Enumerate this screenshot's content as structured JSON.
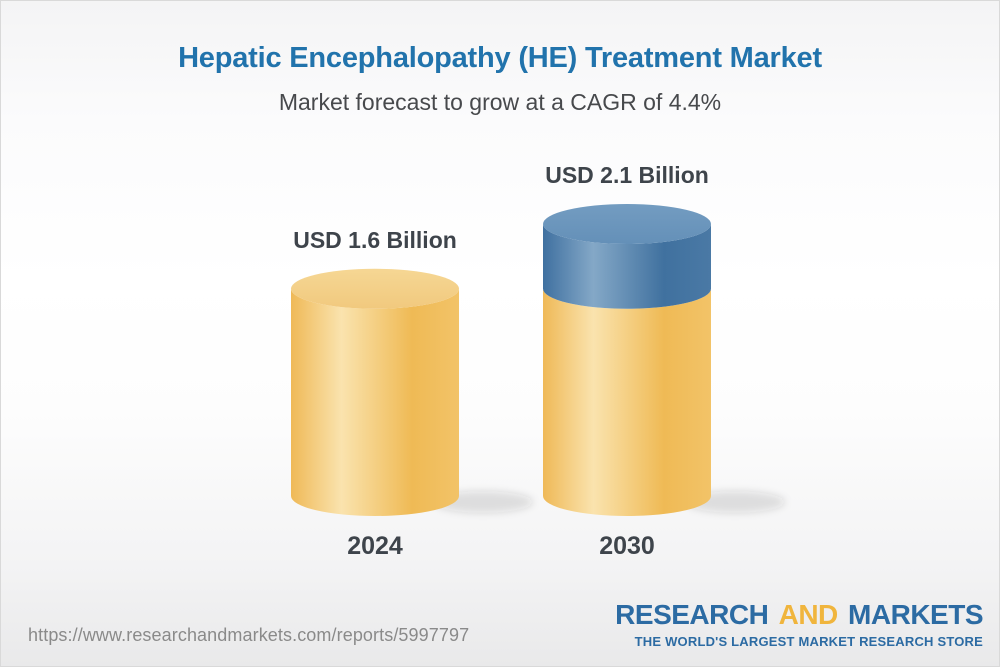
{
  "header": {
    "title": "Hepatic Encephalopathy (HE) Treatment Market",
    "subtitle": "Market forecast to grow at a CAGR of 4.4%",
    "title_color": "#2173ac",
    "subtitle_color": "#47494c"
  },
  "chart_data": {
    "type": "bar",
    "subtype": "3d-cylinder",
    "title": "Hepatic Encephalopathy (HE) Treatment Market",
    "subtitle": "Market forecast to grow at a CAGR of 4.4%",
    "cagr_percent": 4.4,
    "unit": "USD Billion",
    "categories": [
      "2024",
      "2030"
    ],
    "values": [
      1.6,
      2.1
    ],
    "value_labels": [
      "USD 1.6 Billion",
      "USD 2.1 Billion"
    ],
    "axis": {
      "y_axis_shown": false,
      "gridlines": false,
      "x_labels_shown": true
    },
    "legend": {
      "shown": false
    },
    "colors": {
      "base_segment": "#f3c46c",
      "growth_segment": "#5e8cb5",
      "label_text": "#3e444b",
      "gradients": {
        "yellow_side": [
          [
            "0%",
            "#efb957"
          ],
          [
            "30%",
            "#fae3ae"
          ],
          [
            "72%",
            "#efba55"
          ],
          [
            "100%",
            "#f2c368"
          ]
        ],
        "yellow_top": [
          [
            "0%",
            "#f6d794"
          ],
          [
            "100%",
            "#f1c97e"
          ]
        ],
        "blue_side": [
          [
            "0%",
            "#3f70a0"
          ],
          [
            "30%",
            "#84a8c7"
          ],
          [
            "72%",
            "#40719f"
          ],
          [
            "100%",
            "#4a79a5"
          ]
        ],
        "blue_top": [
          [
            "0%",
            "#739cc1"
          ],
          [
            "100%",
            "#6490b8"
          ]
        ]
      },
      "shadow": "rgba(40,40,40,0.13)"
    }
  },
  "footer": {
    "url": "https://www.researchandmarkets.com/reports/5997797",
    "url_color": "#8a8a8a",
    "logo": {
      "part1": "RESEARCH",
      "part2": "AND",
      "part3": "MARKETS",
      "tagline": "THE WORLD'S LARGEST MARKET RESEARCH STORE",
      "blue": "#2c6ba3",
      "yellow": "#f0b53d"
    }
  }
}
